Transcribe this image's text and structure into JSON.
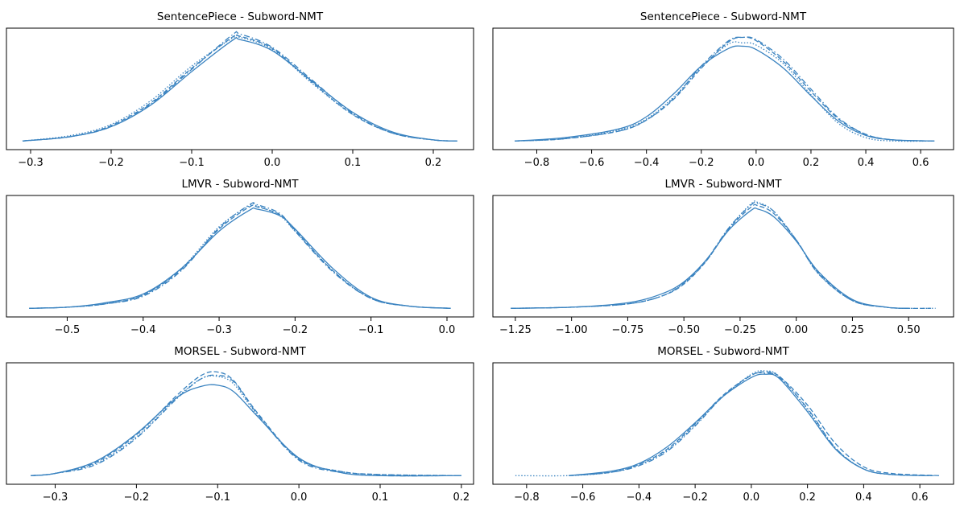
{
  "line_color": "#3a83c0",
  "chart_data": [
    {
      "type": "line",
      "title": "SentencePiece - Subword-NMT",
      "xlabel": "",
      "ylabel": "",
      "xlim": [
        -0.33,
        0.25
      ],
      "x_ticks": [
        -0.3,
        -0.2,
        -0.1,
        0.0,
        0.1,
        0.2
      ],
      "x_tick_labels": [
        "−0.3",
        "−0.2",
        "−0.1",
        "0.0",
        "0.1",
        "0.2"
      ],
      "grid": false,
      "legend": "none",
      "y_ticks_visible": false,
      "series": [
        {
          "style": "solid",
          "x": [
            -0.31,
            -0.25,
            -0.2,
            -0.15,
            -0.1,
            -0.05,
            -0.04,
            0.0,
            0.05,
            0.1,
            0.15,
            0.2,
            0.23
          ],
          "y": [
            0.02,
            0.06,
            0.15,
            0.35,
            0.65,
            0.93,
            0.94,
            0.84,
            0.56,
            0.28,
            0.1,
            0.03,
            0.02
          ]
        },
        {
          "style": "dashed",
          "x": [
            -0.31,
            -0.25,
            -0.2,
            -0.15,
            -0.1,
            -0.05,
            -0.04,
            0.0,
            0.05,
            0.1,
            0.15,
            0.2,
            0.23
          ],
          "y": [
            0.02,
            0.06,
            0.16,
            0.37,
            0.68,
            0.96,
            0.97,
            0.86,
            0.55,
            0.26,
            0.09,
            0.03,
            0.02
          ]
        },
        {
          "style": "dashdot",
          "x": [
            -0.31,
            -0.25,
            -0.2,
            -0.15,
            -0.1,
            -0.05,
            -0.04,
            0.0,
            0.05,
            0.1,
            0.15,
            0.2,
            0.23
          ],
          "y": [
            0.02,
            0.06,
            0.15,
            0.36,
            0.67,
            0.98,
            0.99,
            0.87,
            0.57,
            0.27,
            0.09,
            0.03,
            0.02
          ]
        },
        {
          "style": "dotted",
          "x": [
            -0.31,
            -0.25,
            -0.2,
            -0.15,
            -0.1,
            -0.05,
            -0.04,
            0.0,
            0.05,
            0.1,
            0.15,
            0.2,
            0.23
          ],
          "y": [
            0.02,
            0.07,
            0.17,
            0.39,
            0.7,
            0.95,
            0.96,
            0.85,
            0.54,
            0.26,
            0.09,
            0.03,
            0.02
          ]
        }
      ]
    },
    {
      "type": "line",
      "title": "SentencePiece - Subword-NMT",
      "xlabel": "",
      "ylabel": "",
      "xlim": [
        -0.96,
        0.72
      ],
      "x_ticks": [
        -0.8,
        -0.6,
        -0.4,
        -0.2,
        0.0,
        0.2,
        0.4,
        0.6
      ],
      "x_tick_labels": [
        "−0.8",
        "−0.6",
        "−0.4",
        "−0.2",
        "0.0",
        "0.2",
        "0.4",
        "0.6"
      ],
      "grid": false,
      "legend": "none",
      "y_ticks_visible": false,
      "series": [
        {
          "style": "solid",
          "x": [
            -0.88,
            -0.7,
            -0.5,
            -0.4,
            -0.3,
            -0.2,
            -0.1,
            -0.05,
            0.0,
            0.1,
            0.2,
            0.3,
            0.4,
            0.5,
            0.65
          ],
          "y": [
            0.02,
            0.05,
            0.13,
            0.24,
            0.45,
            0.7,
            0.86,
            0.88,
            0.85,
            0.68,
            0.43,
            0.2,
            0.07,
            0.03,
            0.02
          ]
        },
        {
          "style": "dashed",
          "x": [
            -0.88,
            -0.7,
            -0.5,
            -0.4,
            -0.3,
            -0.2,
            -0.1,
            -0.05,
            0.0,
            0.1,
            0.2,
            0.3,
            0.4,
            0.5,
            0.65
          ],
          "y": [
            0.02,
            0.04,
            0.11,
            0.21,
            0.4,
            0.68,
            0.92,
            0.96,
            0.93,
            0.74,
            0.47,
            0.22,
            0.08,
            0.03,
            0.02
          ]
        },
        {
          "style": "dashdot",
          "x": [
            -0.88,
            -0.7,
            -0.5,
            -0.4,
            -0.3,
            -0.2,
            -0.1,
            -0.05,
            0.0,
            0.1,
            0.2,
            0.3,
            0.4,
            0.5,
            0.65
          ],
          "y": [
            0.02,
            0.04,
            0.11,
            0.21,
            0.41,
            0.7,
            0.93,
            0.96,
            0.94,
            0.76,
            0.49,
            0.23,
            0.08,
            0.03,
            0.02
          ]
        },
        {
          "style": "dotted",
          "x": [
            -0.88,
            -0.7,
            -0.5,
            -0.4,
            -0.3,
            -0.2,
            -0.1,
            -0.05,
            0.0,
            0.1,
            0.2,
            0.3,
            0.4,
            0.5,
            0.65
          ],
          "y": [
            0.02,
            0.04,
            0.12,
            0.22,
            0.42,
            0.69,
            0.9,
            0.91,
            0.89,
            0.72,
            0.44,
            0.18,
            0.05,
            0.02,
            0.02
          ]
        }
      ]
    },
    {
      "type": "line",
      "title": "LMVR - Subword-NMT",
      "xlabel": "",
      "ylabel": "",
      "xlim": [
        -0.58,
        0.035
      ],
      "x_ticks": [
        -0.5,
        -0.4,
        -0.3,
        -0.2,
        -0.1,
        0.0
      ],
      "x_tick_labels": [
        "−0.5",
        "−0.4",
        "−0.3",
        "−0.2",
        "−0.1",
        "0.0"
      ],
      "grid": false,
      "legend": "none",
      "y_ticks_visible": false,
      "series": [
        {
          "style": "solid",
          "x": [
            -0.55,
            -0.5,
            -0.45,
            -0.4,
            -0.35,
            -0.3,
            -0.26,
            -0.25,
            -0.22,
            -0.2,
            -0.15,
            -0.1,
            -0.05,
            0.005
          ],
          "y": [
            0.02,
            0.03,
            0.07,
            0.15,
            0.38,
            0.72,
            0.91,
            0.92,
            0.86,
            0.74,
            0.38,
            0.12,
            0.04,
            0.02
          ]
        },
        {
          "style": "dashed",
          "x": [
            -0.55,
            -0.5,
            -0.45,
            -0.4,
            -0.35,
            -0.3,
            -0.26,
            -0.25,
            -0.22,
            -0.2,
            -0.15,
            -0.1,
            -0.05,
            0.005
          ],
          "y": [
            0.02,
            0.03,
            0.06,
            0.14,
            0.37,
            0.74,
            0.94,
            0.94,
            0.87,
            0.73,
            0.36,
            0.11,
            0.04,
            0.02
          ]
        },
        {
          "style": "dashdot",
          "x": [
            -0.55,
            -0.5,
            -0.45,
            -0.4,
            -0.35,
            -0.3,
            -0.26,
            -0.25,
            -0.22,
            -0.2,
            -0.15,
            -0.1,
            -0.05,
            0.005
          ],
          "y": [
            0.02,
            0.03,
            0.06,
            0.13,
            0.36,
            0.75,
            0.96,
            0.96,
            0.88,
            0.72,
            0.35,
            0.11,
            0.04,
            0.02
          ]
        },
        {
          "style": "dotted",
          "x": [
            -0.55,
            -0.5,
            -0.45,
            -0.4,
            -0.35,
            -0.3,
            -0.26,
            -0.25,
            -0.22,
            -0.2,
            -0.15,
            -0.1,
            -0.05,
            0.005
          ],
          "y": [
            0.02,
            0.03,
            0.06,
            0.14,
            0.38,
            0.76,
            0.95,
            0.95,
            0.86,
            0.72,
            0.36,
            0.11,
            0.04,
            0.02
          ]
        }
      ]
    },
    {
      "type": "line",
      "title": "LMVR - Subword-NMT",
      "xlabel": "",
      "ylabel": "",
      "xlim": [
        -1.35,
        0.7
      ],
      "x_ticks": [
        -1.25,
        -1.0,
        -0.75,
        -0.5,
        -0.25,
        0.0,
        0.25,
        0.5
      ],
      "x_tick_labels": [
        "−1.25",
        "−1.00",
        "−0.75",
        "−0.50",
        "−0.25",
        "0.00",
        "0.25",
        "0.50"
      ],
      "grid": false,
      "legend": "none",
      "y_ticks_visible": false,
      "series": [
        {
          "style": "solid",
          "x": [
            -1.27,
            -1.0,
            -0.75,
            -0.6,
            -0.5,
            -0.4,
            -0.3,
            -0.2,
            -0.17,
            -0.1,
            0.0,
            0.1,
            0.25,
            0.4,
            0.5
          ],
          "y": [
            0.02,
            0.03,
            0.07,
            0.15,
            0.26,
            0.46,
            0.73,
            0.91,
            0.92,
            0.85,
            0.63,
            0.35,
            0.1,
            0.03,
            0.02
          ]
        },
        {
          "style": "dashed",
          "x": [
            -1.27,
            -1.0,
            -0.75,
            -0.6,
            -0.5,
            -0.4,
            -0.3,
            -0.2,
            -0.17,
            -0.1,
            0.0,
            0.1,
            0.25,
            0.4,
            0.5,
            0.6
          ],
          "y": [
            0.02,
            0.03,
            0.06,
            0.13,
            0.24,
            0.45,
            0.74,
            0.94,
            0.95,
            0.88,
            0.64,
            0.34,
            0.09,
            0.03,
            0.02,
            0.02
          ]
        },
        {
          "style": "dashdot",
          "x": [
            -1.27,
            -1.0,
            -0.75,
            -0.6,
            -0.5,
            -0.4,
            -0.3,
            -0.2,
            -0.17,
            -0.1,
            0.0,
            0.1,
            0.25,
            0.4,
            0.5
          ],
          "y": [
            0.02,
            0.03,
            0.06,
            0.13,
            0.25,
            0.46,
            0.75,
            0.96,
            0.97,
            0.9,
            0.64,
            0.33,
            0.09,
            0.03,
            0.02
          ]
        },
        {
          "style": "dotted",
          "x": [
            -1.27,
            -1.0,
            -0.75,
            -0.6,
            -0.5,
            -0.4,
            -0.3,
            -0.2,
            -0.17,
            -0.1,
            0.0,
            0.1,
            0.25,
            0.4,
            0.5,
            0.62
          ],
          "y": [
            0.02,
            0.03,
            0.06,
            0.13,
            0.25,
            0.45,
            0.75,
            0.97,
            0.98,
            0.9,
            0.64,
            0.33,
            0.09,
            0.03,
            0.02,
            0.02
          ]
        }
      ]
    },
    {
      "type": "line",
      "title": "MORSEL - Subword-NMT",
      "xlabel": "",
      "ylabel": "",
      "xlim": [
        -0.36,
        0.215
      ],
      "x_ticks": [
        -0.3,
        -0.2,
        -0.1,
        0.0,
        0.1,
        0.2
      ],
      "x_tick_labels": [
        "−0.3",
        "−0.2",
        "−0.1",
        "0.0",
        "0.1",
        "0.2"
      ],
      "grid": false,
      "legend": "none",
      "y_ticks_visible": false,
      "series": [
        {
          "style": "solid",
          "x": [
            -0.33,
            -0.3,
            -0.25,
            -0.2,
            -0.15,
            -0.12,
            -0.1,
            -0.08,
            -0.05,
            0.0,
            0.05,
            0.1,
            0.2
          ],
          "y": [
            0.02,
            0.04,
            0.15,
            0.4,
            0.73,
            0.83,
            0.84,
            0.78,
            0.55,
            0.18,
            0.05,
            0.02,
            0.02
          ]
        },
        {
          "style": "dashed",
          "x": [
            -0.33,
            -0.3,
            -0.25,
            -0.2,
            -0.15,
            -0.12,
            -0.1,
            -0.08,
            -0.05,
            0.0,
            0.05,
            0.1,
            0.2
          ],
          "y": [
            0.02,
            0.04,
            0.14,
            0.39,
            0.75,
            0.93,
            0.96,
            0.88,
            0.58,
            0.17,
            0.06,
            0.03,
            0.02
          ]
        },
        {
          "style": "dashdot",
          "x": [
            -0.33,
            -0.3,
            -0.25,
            -0.2,
            -0.15,
            -0.12,
            -0.1,
            -0.08,
            -0.05,
            0.0,
            0.05,
            0.1,
            0.2
          ],
          "y": [
            0.02,
            0.04,
            0.12,
            0.36,
            0.72,
            0.9,
            0.93,
            0.87,
            0.57,
            0.16,
            0.05,
            0.02,
            0.02
          ]
        },
        {
          "style": "dotted",
          "x": [
            -0.33,
            -0.3,
            -0.25,
            -0.2,
            -0.15,
            -0.12,
            -0.1,
            -0.08,
            -0.05,
            0.0,
            0.05,
            0.1,
            0.2
          ],
          "y": [
            0.02,
            0.04,
            0.13,
            0.37,
            0.73,
            0.9,
            0.92,
            0.85,
            0.56,
            0.17,
            0.06,
            0.03,
            0.02
          ]
        }
      ]
    },
    {
      "type": "line",
      "title": "MORSEL - Subword-NMT",
      "xlabel": "",
      "ylabel": "",
      "xlim": [
        -0.92,
        0.72
      ],
      "x_ticks": [
        -0.8,
        -0.6,
        -0.4,
        -0.2,
        0.0,
        0.2,
        0.4,
        0.6
      ],
      "x_tick_labels": [
        "−0.8",
        "−0.6",
        "−0.4",
        "−0.2",
        "0.0",
        "0.2",
        "0.4",
        "0.6"
      ],
      "grid": false,
      "legend": "none",
      "y_ticks_visible": false,
      "series": [
        {
          "style": "solid",
          "x": [
            -0.65,
            -0.5,
            -0.4,
            -0.3,
            -0.2,
            -0.1,
            0.0,
            0.05,
            0.1,
            0.2,
            0.3,
            0.4,
            0.5,
            0.65
          ],
          "y": [
            0.02,
            0.06,
            0.13,
            0.28,
            0.5,
            0.74,
            0.91,
            0.94,
            0.9,
            0.6,
            0.26,
            0.08,
            0.03,
            0.02
          ]
        },
        {
          "style": "dashed",
          "x": [
            -0.65,
            -0.5,
            -0.4,
            -0.3,
            -0.2,
            -0.1,
            0.0,
            0.05,
            0.1,
            0.2,
            0.3,
            0.4,
            0.5,
            0.67
          ],
          "y": [
            0.02,
            0.05,
            0.12,
            0.26,
            0.49,
            0.75,
            0.93,
            0.96,
            0.92,
            0.66,
            0.31,
            0.1,
            0.04,
            0.02
          ]
        },
        {
          "style": "dashdot",
          "x": [
            -0.65,
            -0.5,
            -0.4,
            -0.3,
            -0.2,
            -0.1,
            0.0,
            0.05,
            0.1,
            0.2,
            0.3,
            0.4,
            0.5,
            0.65
          ],
          "y": [
            0.02,
            0.05,
            0.11,
            0.24,
            0.47,
            0.74,
            0.93,
            0.95,
            0.91,
            0.63,
            0.27,
            0.08,
            0.03,
            0.02
          ]
        },
        {
          "style": "dotted",
          "x": [
            -0.84,
            -0.65,
            -0.5,
            -0.4,
            -0.3,
            -0.2,
            -0.1,
            0.0,
            0.05,
            0.1,
            0.2,
            0.3,
            0.4,
            0.5,
            0.65
          ],
          "y": [
            0.02,
            0.02,
            0.05,
            0.12,
            0.25,
            0.48,
            0.74,
            0.94,
            0.97,
            0.92,
            0.62,
            0.27,
            0.08,
            0.03,
            0.02
          ]
        }
      ]
    }
  ]
}
